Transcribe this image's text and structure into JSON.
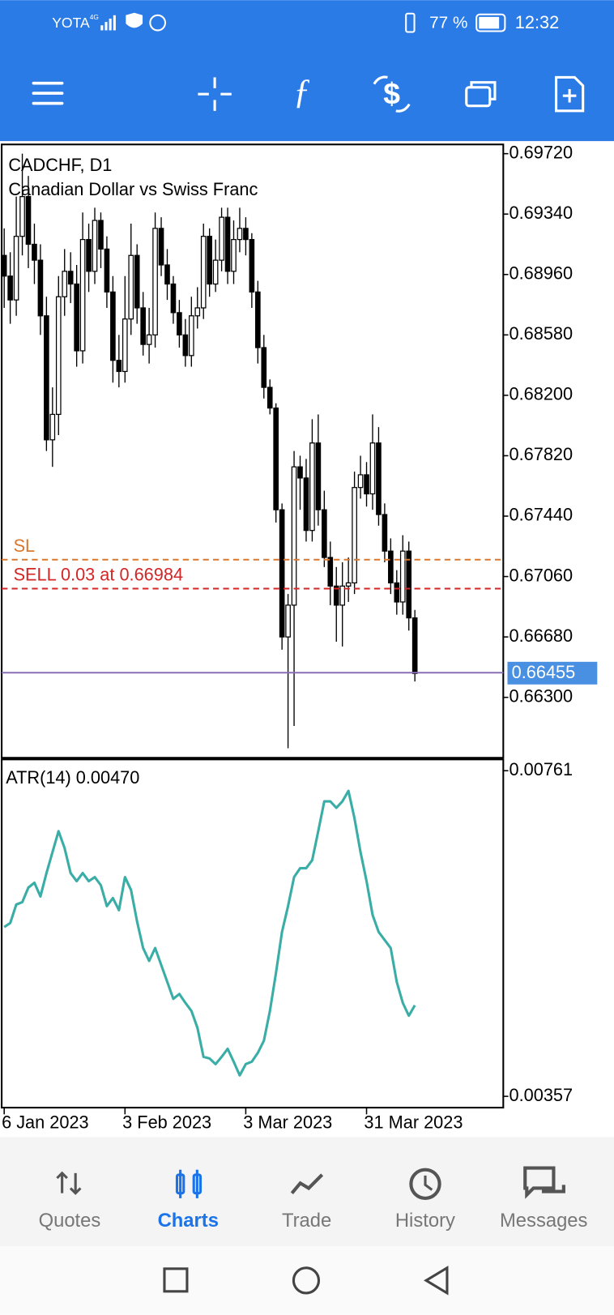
{
  "status_bar": {
    "carrier": "YOTA",
    "network": "4G",
    "battery": "77 %",
    "time": "12:32"
  },
  "bottom_nav": {
    "items": [
      "Quotes",
      "Charts",
      "Trade",
      "History",
      "Messages"
    ]
  },
  "chart_data": [
    {
      "type": "candlestick",
      "title": "CADCHF, D1",
      "subtitle": "Canadian Dollar vs Swiss Franc",
      "categories": [
        "6 Jan 2023",
        null,
        null,
        null,
        null,
        null,
        null,
        null,
        null,
        null,
        null,
        null,
        null,
        null,
        null,
        null,
        null,
        null,
        null,
        null,
        "3 Feb 2023",
        null,
        null,
        null,
        null,
        null,
        null,
        null,
        null,
        null,
        null,
        null,
        null,
        null,
        null,
        null,
        null,
        null,
        null,
        null,
        "3 Mar 2023",
        null,
        null,
        null,
        null,
        null,
        null,
        null,
        null,
        null,
        null,
        null,
        null,
        null,
        null,
        null,
        null,
        null,
        null,
        null,
        "31 Mar 2023",
        null,
        null,
        null,
        null,
        null,
        null,
        null,
        null
      ],
      "open": [
        0.6908,
        0.6895,
        0.688,
        0.692,
        0.6945,
        0.6915,
        0.6905,
        0.687,
        0.6792,
        0.6808,
        0.6882,
        0.6898,
        0.689,
        0.6848,
        0.6918,
        0.6898,
        0.693,
        0.6912,
        0.6885,
        0.6842,
        0.6835,
        0.6868,
        0.6908,
        0.6875,
        0.6852,
        0.6858,
        0.6925,
        0.6902,
        0.689,
        0.6872,
        0.6858,
        0.6845,
        0.687,
        0.6875,
        0.692,
        0.689,
        0.6905,
        0.6932,
        0.6898,
        0.6918,
        0.6925,
        0.6918,
        0.6885,
        0.685,
        0.6825,
        0.6812,
        0.6748,
        0.6668,
        0.6688,
        0.6775,
        0.6768,
        0.6735,
        0.679,
        0.6748,
        0.6718,
        0.67,
        0.6688,
        0.67,
        0.6702,
        0.6762,
        0.677,
        0.6758,
        0.679,
        0.6745,
        0.6722,
        0.6702,
        0.669,
        0.6722,
        0.668
      ],
      "high": [
        0.6925,
        0.691,
        0.6945,
        0.6972,
        0.6958,
        0.6928,
        0.6915,
        0.6882,
        0.6825,
        0.6895,
        0.6912,
        0.691,
        0.6902,
        0.6935,
        0.6928,
        0.6938,
        0.6935,
        0.692,
        0.6895,
        0.6858,
        0.6895,
        0.6928,
        0.6915,
        0.6885,
        0.6875,
        0.6935,
        0.6932,
        0.6912,
        0.6895,
        0.688,
        0.6868,
        0.6882,
        0.6888,
        0.6928,
        0.6925,
        0.6918,
        0.6938,
        0.6938,
        0.693,
        0.6938,
        0.6932,
        0.6922,
        0.6892,
        0.6858,
        0.683,
        0.6815,
        0.6752,
        0.6695,
        0.6785,
        0.6782,
        0.678,
        0.6805,
        0.6808,
        0.676,
        0.6728,
        0.6712,
        0.6715,
        0.6718,
        0.6772,
        0.6782,
        0.6778,
        0.6808,
        0.68,
        0.6752,
        0.673,
        0.671,
        0.6732,
        0.6728,
        0.6685
      ],
      "low": [
        0.6875,
        0.6865,
        0.687,
        0.6908,
        0.69,
        0.689,
        0.6858,
        0.6785,
        0.6775,
        0.6795,
        0.687,
        0.6878,
        0.6838,
        0.684,
        0.6885,
        0.689,
        0.69,
        0.6875,
        0.6828,
        0.6825,
        0.6828,
        0.6858,
        0.6865,
        0.6845,
        0.684,
        0.685,
        0.6895,
        0.688,
        0.6865,
        0.685,
        0.6838,
        0.6838,
        0.6862,
        0.6868,
        0.6882,
        0.6885,
        0.6898,
        0.689,
        0.689,
        0.691,
        0.6908,
        0.6875,
        0.684,
        0.6818,
        0.6808,
        0.674,
        0.666,
        0.6598,
        0.6612,
        0.6748,
        0.6728,
        0.6728,
        0.6738,
        0.6712,
        0.6688,
        0.6665,
        0.6662,
        0.669,
        0.6695,
        0.6755,
        0.675,
        0.6748,
        0.6738,
        0.6715,
        0.6695,
        0.6682,
        0.6682,
        0.6672,
        0.664
      ],
      "close": [
        0.6895,
        0.688,
        0.692,
        0.6945,
        0.6915,
        0.6905,
        0.687,
        0.6792,
        0.6808,
        0.6882,
        0.6898,
        0.689,
        0.6848,
        0.6918,
        0.6898,
        0.693,
        0.6912,
        0.6885,
        0.6842,
        0.6835,
        0.6868,
        0.6908,
        0.6875,
        0.6852,
        0.6858,
        0.6925,
        0.6902,
        0.689,
        0.6872,
        0.6858,
        0.6845,
        0.687,
        0.6875,
        0.692,
        0.689,
        0.6905,
        0.6932,
        0.6898,
        0.6918,
        0.6925,
        0.6918,
        0.6885,
        0.685,
        0.6825,
        0.6812,
        0.6748,
        0.6668,
        0.6688,
        0.6775,
        0.6768,
        0.6735,
        0.679,
        0.6748,
        0.6718,
        0.67,
        0.6688,
        0.67,
        0.6702,
        0.6762,
        0.677,
        0.6758,
        0.679,
        0.6745,
        0.6722,
        0.6702,
        0.669,
        0.6722,
        0.668,
        0.6645
      ],
      "ylim": [
        0.6592,
        0.69778
      ],
      "yticks": [
        {
          "value": 0.6972,
          "label": "0.69720"
        },
        {
          "value": 0.6934,
          "label": "0.69340"
        },
        {
          "value": 0.6896,
          "label": "0.68960"
        },
        {
          "value": 0.6858,
          "label": "0.68580"
        },
        {
          "value": 0.682,
          "label": "0.68200"
        },
        {
          "value": 0.6782,
          "label": "0.67820"
        },
        {
          "value": 0.6744,
          "label": "0.67440"
        },
        {
          "value": 0.6706,
          "label": "0.67060"
        },
        {
          "value": 0.6668,
          "label": "0.66680"
        },
        {
          "value": 0.663,
          "label": "0.66300"
        }
      ],
      "levels": [
        {
          "label": "SL",
          "value": 0.67166,
          "color": "#d9782f"
        },
        {
          "label": "SELL 0.03 at 0.66984",
          "value": 0.66984,
          "color": "#d32626"
        }
      ],
      "current_price": 0.66455,
      "current_price_color": "#8a6fb5"
    },
    {
      "type": "line",
      "title": "ATR(14) 0.00470",
      "color": "#3aaea6",
      "values": [
        0.00567,
        0.00572,
        0.00595,
        0.00598,
        0.00616,
        0.00622,
        0.00605,
        0.00634,
        0.0066,
        0.00686,
        0.00665,
        0.00634,
        0.00624,
        0.00634,
        0.00624,
        0.00629,
        0.00619,
        0.00593,
        0.00603,
        0.00588,
        0.00629,
        0.00613,
        0.00574,
        0.00541,
        0.00525,
        0.00541,
        0.0052,
        0.00499,
        0.00478,
        0.00484,
        0.00473,
        0.00463,
        0.00442,
        0.00406,
        0.00404,
        0.00397,
        0.00406,
        0.00416,
        0.004,
        0.00383,
        0.00397,
        0.004,
        0.00411,
        0.00426,
        0.00463,
        0.0051,
        0.00561,
        0.00593,
        0.00629,
        0.0064,
        0.0064,
        0.0065,
        0.00686,
        0.00723,
        0.00723,
        0.00715,
        0.00723,
        0.00736,
        0.00702,
        0.0066,
        0.00624,
        0.00582,
        0.00561,
        0.00551,
        0.00541,
        0.00499,
        0.00473,
        0.00457,
        0.0047
      ],
      "ylim": [
        0.00343,
        0.00775
      ],
      "yticks": [
        0.00761,
        0.00357
      ]
    }
  ]
}
